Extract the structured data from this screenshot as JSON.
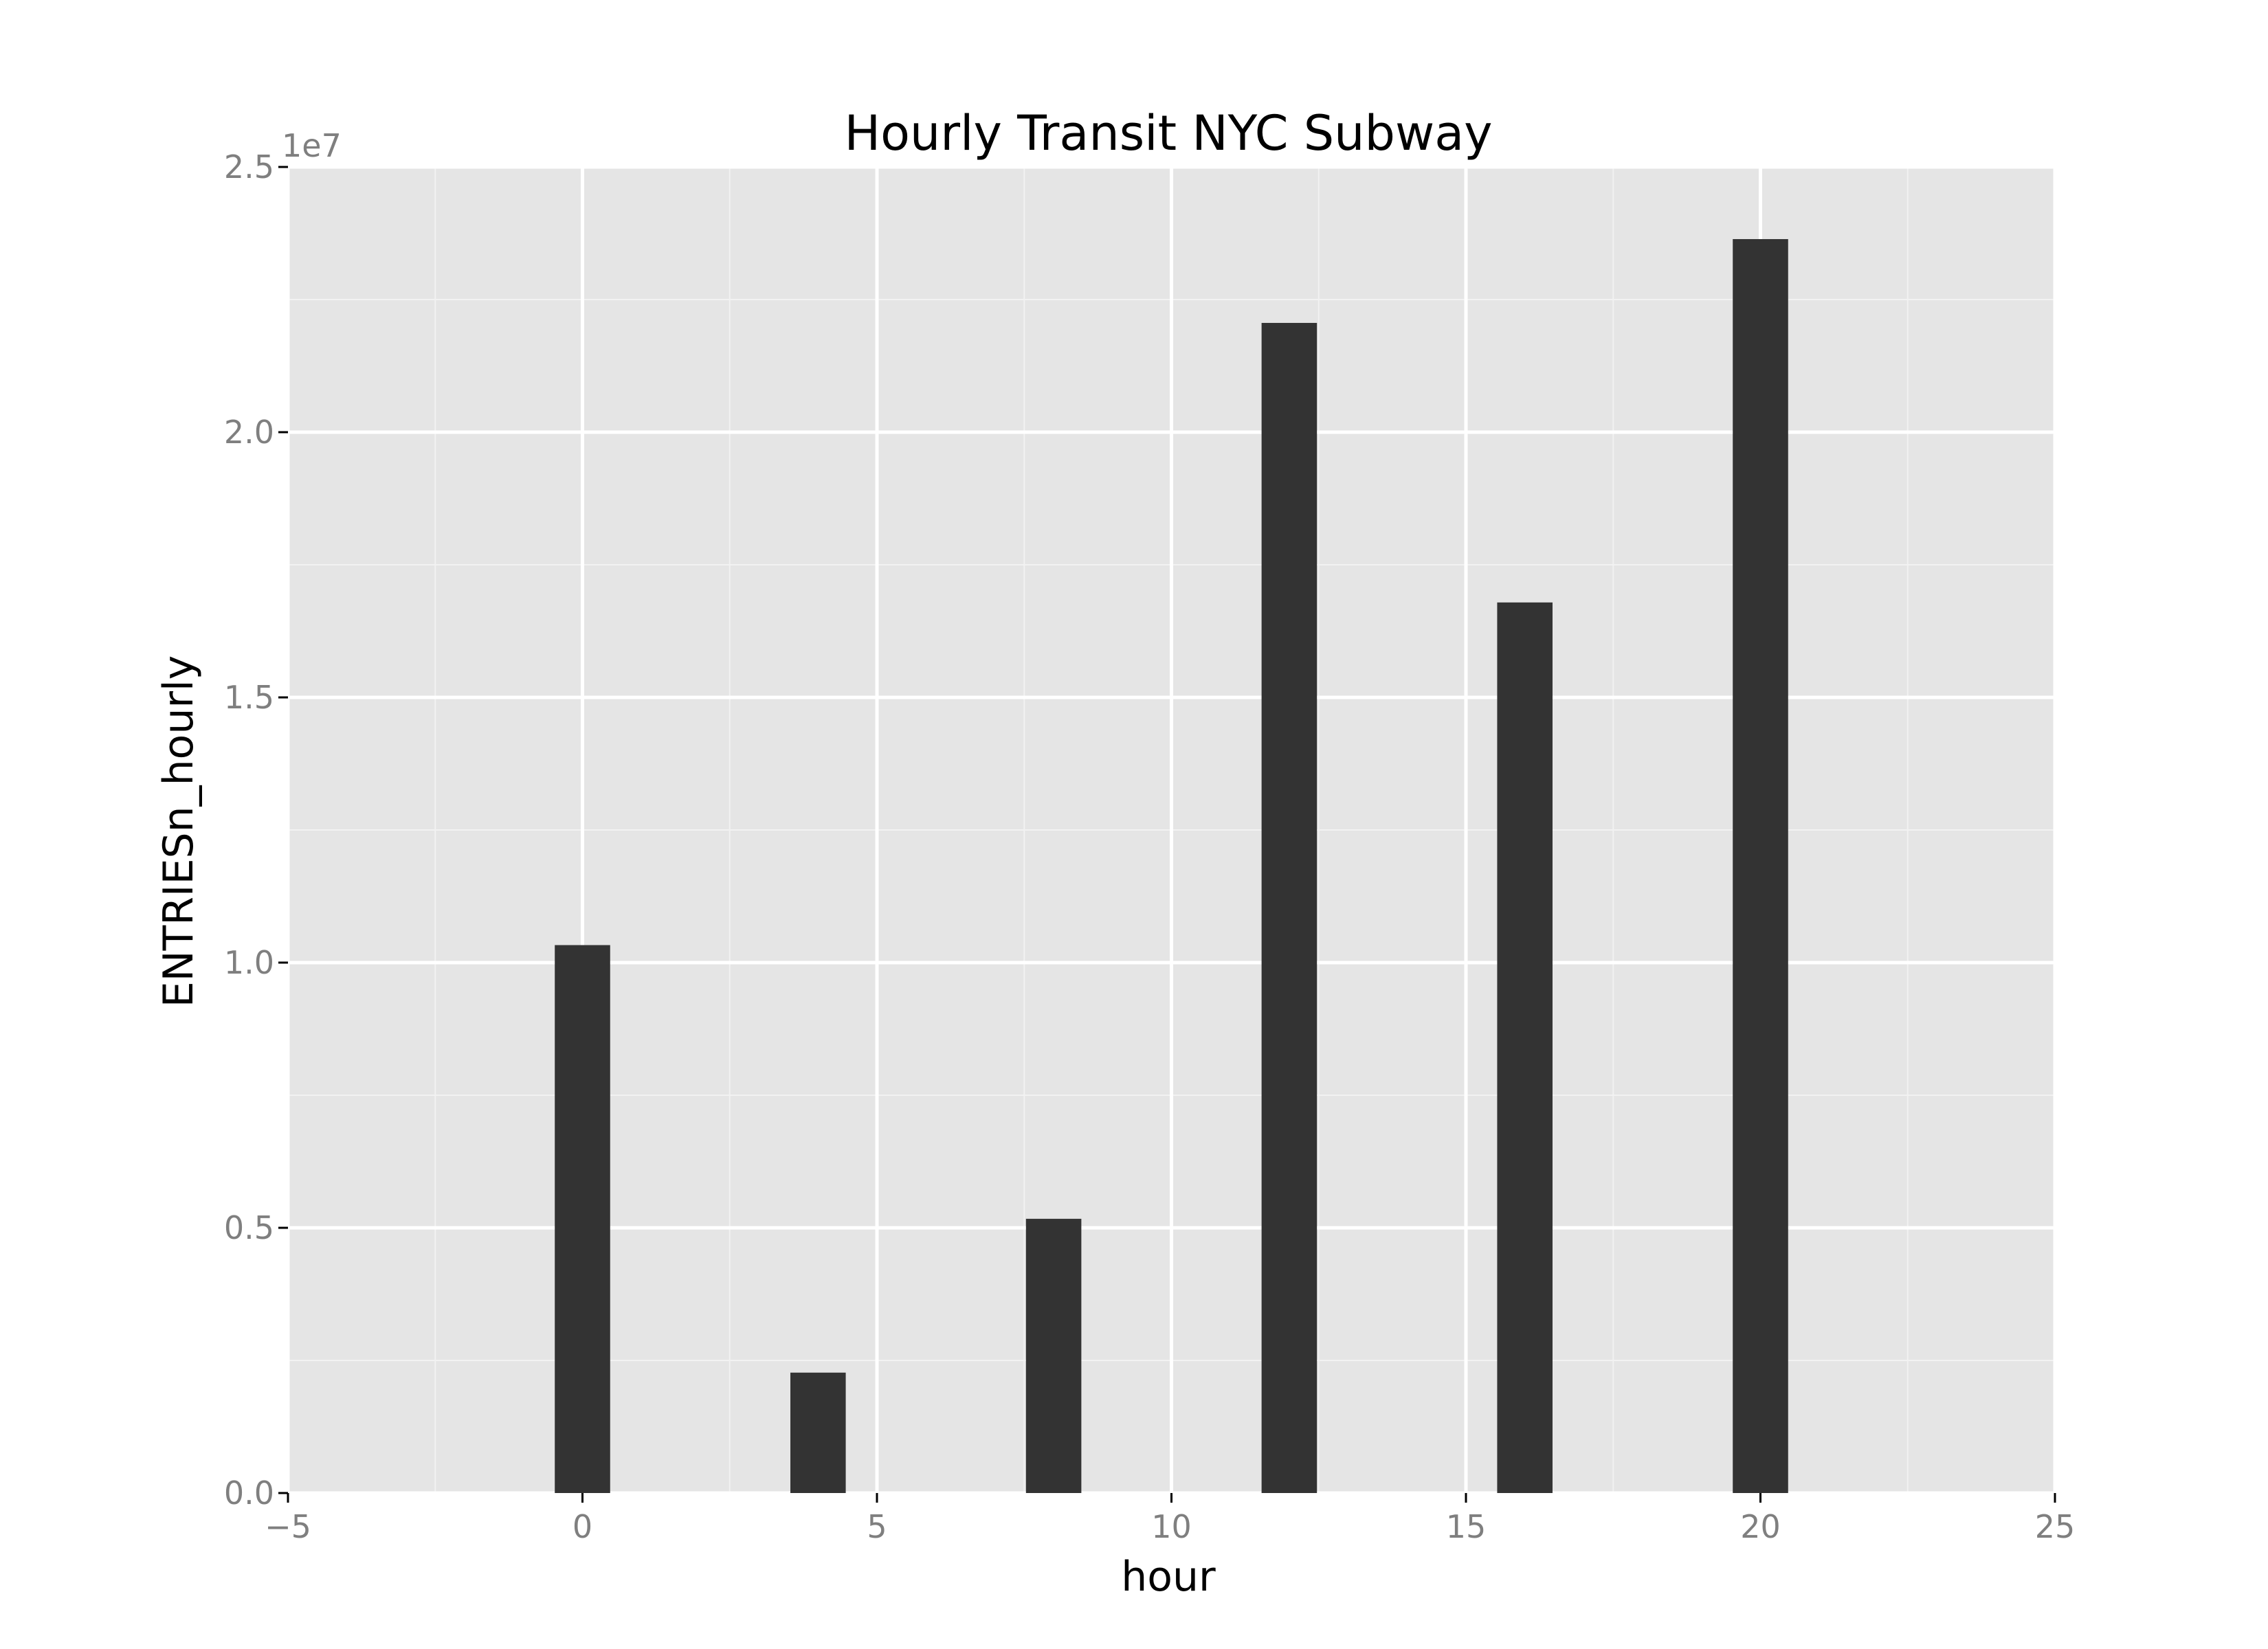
{
  "chart_data": {
    "type": "bar",
    "title": "Hourly Transit NYC Subway",
    "xlabel": "hour",
    "ylabel": "ENTRIESn_hourly",
    "y_offset_label": "1e7",
    "x": [
      0,
      4,
      8,
      12,
      16,
      20
    ],
    "values": [
      10330000,
      2270000,
      5170000,
      22060000,
      16790000,
      23640000
    ],
    "xlim": [
      -5,
      25
    ],
    "ylim": [
      0,
      25000000
    ],
    "x_ticks": [
      -5,
      0,
      5,
      10,
      15,
      20,
      25
    ],
    "x_tick_labels": [
      "−5",
      "0",
      "5",
      "10",
      "15",
      "20",
      "25"
    ],
    "y_ticks": [
      0,
      5000000,
      10000000,
      15000000,
      20000000,
      25000000
    ],
    "y_tick_labels": [
      "0.0",
      "0.5",
      "1.0",
      "1.5",
      "2.0",
      "2.5"
    ],
    "grid": true,
    "bar_color": "#333333",
    "panel_background": "#e5e5e5",
    "grid_color": "#ffffff"
  }
}
